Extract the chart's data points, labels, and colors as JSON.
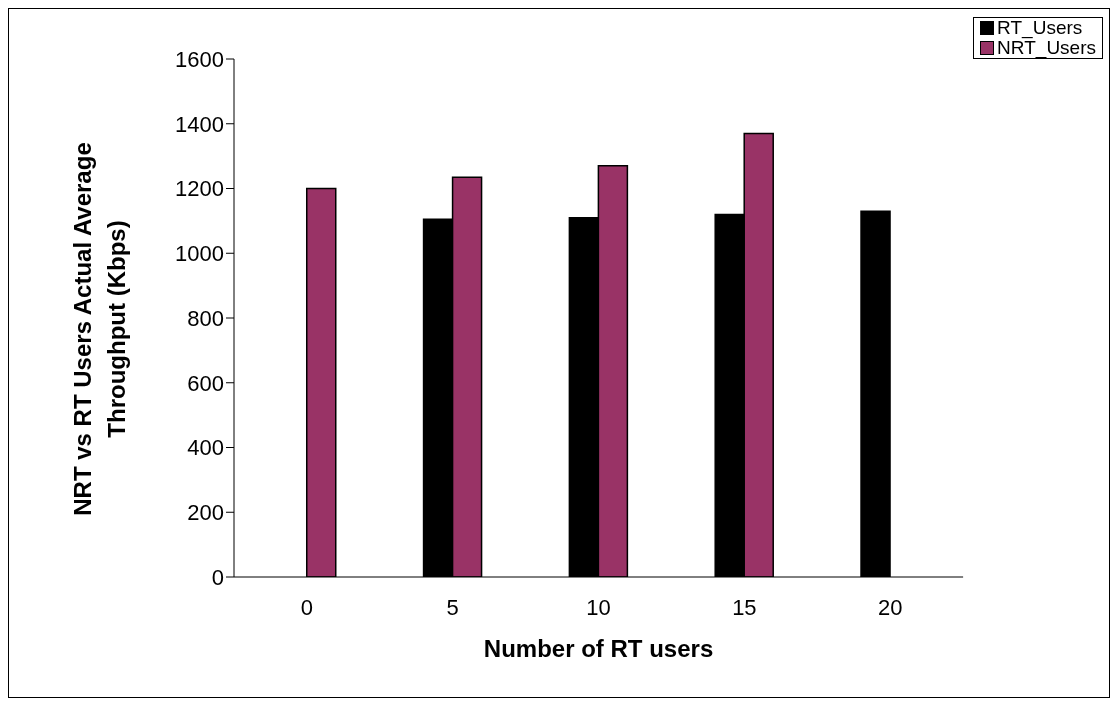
{
  "chart_data": {
    "type": "bar",
    "xlabel": "Number of RT users",
    "ylabel": "NRT vs RT Users Actual Average Throughput (Kbps)",
    "categories": [
      "0",
      "5",
      "10",
      "15",
      "20"
    ],
    "series": [
      {
        "name": "RT_Users",
        "color": "#000000",
        "values": [
          null,
          1105,
          1110,
          1120,
          1130
        ]
      },
      {
        "name": "NRT_Users",
        "color": "#993366",
        "values": [
          1200,
          1235,
          1270,
          1370,
          null
        ]
      }
    ],
    "ylim": [
      0,
      1600
    ],
    "yticks": [
      0,
      200,
      400,
      600,
      800,
      1000,
      1200,
      1400,
      1600
    ],
    "grid": false,
    "legend": "top right"
  }
}
